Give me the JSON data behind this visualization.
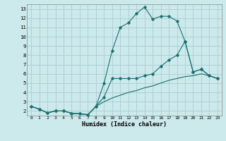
{
  "xlabel": "Humidex (Indice chaleur)",
  "bg_color": "#cce9ec",
  "grid_color": "#aacdd4",
  "line_color": "#1a7070",
  "xlim": [
    -0.5,
    23.5
  ],
  "ylim": [
    1.5,
    13.5
  ],
  "xticks": [
    0,
    1,
    2,
    3,
    4,
    5,
    6,
    7,
    8,
    9,
    10,
    11,
    12,
    13,
    14,
    15,
    16,
    17,
    18,
    19,
    20,
    21,
    22,
    23
  ],
  "yticks": [
    2,
    3,
    4,
    5,
    6,
    7,
    8,
    9,
    10,
    11,
    12,
    13
  ],
  "line1_x": [
    0,
    1,
    2,
    3,
    4,
    5,
    6,
    7,
    8,
    9,
    10,
    11,
    12,
    13,
    14,
    15,
    16,
    17,
    18,
    19,
    20,
    21,
    22,
    23
  ],
  "line1_y": [
    2.5,
    2.2,
    1.8,
    2.0,
    2.0,
    1.75,
    1.7,
    1.6,
    2.5,
    5.0,
    8.5,
    11.0,
    11.5,
    12.5,
    13.2,
    11.9,
    12.2,
    12.2,
    11.7,
    9.5,
    6.2,
    6.5,
    5.8,
    5.5
  ],
  "line2_x": [
    0,
    1,
    2,
    3,
    4,
    5,
    6,
    7,
    8,
    9,
    10,
    11,
    12,
    13,
    14,
    15,
    16,
    17,
    18,
    19,
    20,
    21,
    22,
    23
  ],
  "line2_y": [
    2.5,
    2.2,
    1.8,
    2.0,
    2.0,
    1.75,
    1.7,
    1.6,
    2.5,
    3.5,
    5.5,
    5.5,
    5.5,
    5.5,
    5.8,
    6.0,
    6.8,
    7.5,
    8.0,
    9.5,
    6.2,
    6.5,
    5.8,
    5.5
  ],
  "line3_x": [
    0,
    1,
    2,
    3,
    4,
    5,
    6,
    7,
    8,
    9,
    10,
    11,
    12,
    13,
    14,
    15,
    16,
    17,
    18,
    19,
    20,
    21,
    22,
    23
  ],
  "line3_y": [
    2.5,
    2.2,
    1.8,
    2.0,
    2.0,
    1.75,
    1.7,
    1.6,
    2.5,
    3.0,
    3.4,
    3.7,
    4.0,
    4.2,
    4.5,
    4.7,
    5.0,
    5.3,
    5.5,
    5.7,
    5.8,
    6.0,
    5.8,
    5.5
  ]
}
